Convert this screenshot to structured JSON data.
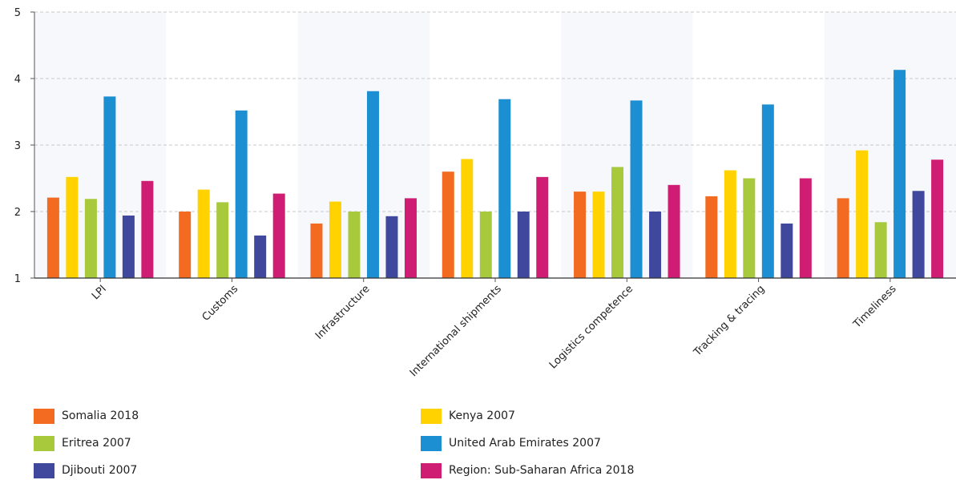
{
  "chart_data": {
    "type": "bar",
    "categories": [
      "LPI",
      "Customs",
      "Infrastructure",
      "International shipments",
      "Logistics competence",
      "Tracking & tracing",
      "Timeliness"
    ],
    "series": [
      {
        "name": "Somalia 2018",
        "color": "#F26B21",
        "values": [
          2.21,
          2.0,
          1.82,
          2.6,
          2.3,
          2.23,
          2.2
        ]
      },
      {
        "name": "Kenya 2007",
        "color": "#FFD200",
        "values": [
          2.52,
          2.33,
          2.15,
          2.79,
          2.3,
          2.62,
          2.92
        ]
      },
      {
        "name": "Eritrea 2007",
        "color": "#A7C93B",
        "values": [
          2.19,
          2.14,
          2.0,
          2.0,
          2.67,
          2.5,
          1.84
        ]
      },
      {
        "name": "United Arab Emirates 2007",
        "color": "#1B8FD1",
        "values": [
          3.73,
          3.52,
          3.81,
          3.69,
          3.67,
          3.61,
          4.13
        ]
      },
      {
        "name": "Djibouti 2007",
        "color": "#40489E",
        "values": [
          1.94,
          1.64,
          1.93,
          2.0,
          2.0,
          1.82,
          2.31
        ]
      },
      {
        "name": "Region: Sub-Saharan Africa 2018",
        "color": "#CF1D73",
        "values": [
          2.46,
          2.27,
          2.2,
          2.52,
          2.4,
          2.5,
          2.78
        ]
      }
    ],
    "yticks": [
      1,
      2,
      3,
      4,
      5
    ],
    "ylim": [
      1,
      5
    ],
    "grid": "horizontal dashed",
    "legend_position": "bottom"
  }
}
